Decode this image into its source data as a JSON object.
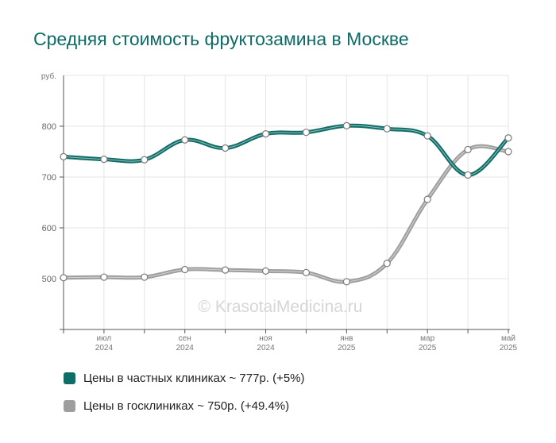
{
  "title": "Средняя стоимость фруктозамина в Москве",
  "watermark": "© KrasotaiMedicina.ru",
  "chart_data": {
    "type": "line",
    "y_unit": "руб.",
    "ylim": [
      400,
      900
    ],
    "yticks": [
      500,
      600,
      700,
      800
    ],
    "grid": true,
    "x_ticks": [
      {
        "index": 1,
        "month": "июл",
        "year": "2024"
      },
      {
        "index": 3,
        "month": "сен",
        "year": "2024"
      },
      {
        "index": 5,
        "month": "ноя",
        "year": "2024"
      },
      {
        "index": 7,
        "month": "янв",
        "year": "2025"
      },
      {
        "index": 9,
        "month": "мар",
        "year": "2025"
      },
      {
        "index": 11,
        "month": "май",
        "year": "2025"
      }
    ],
    "x": [
      "2024-06",
      "2024-07",
      "2024-08",
      "2024-09",
      "2024-10",
      "2024-11",
      "2024-12",
      "2025-01",
      "2025-02",
      "2025-03",
      "2025-04",
      "2025-05"
    ],
    "series": [
      {
        "name": "Цены в частных клиниках ~ 777р. (+5%)",
        "color": "#0e6d66",
        "values": [
          740,
          735,
          734,
          773,
          757,
          785,
          788,
          801,
          795,
          781,
          704,
          777
        ]
      },
      {
        "name": "Цены в госклиниках ~ 750р. (+49.4%)",
        "color": "#9e9e9e",
        "values": [
          502,
          503,
          503,
          518,
          517,
          515,
          512,
          494,
          530,
          656,
          754,
          750
        ]
      }
    ],
    "legend_position": "bottom-left"
  }
}
